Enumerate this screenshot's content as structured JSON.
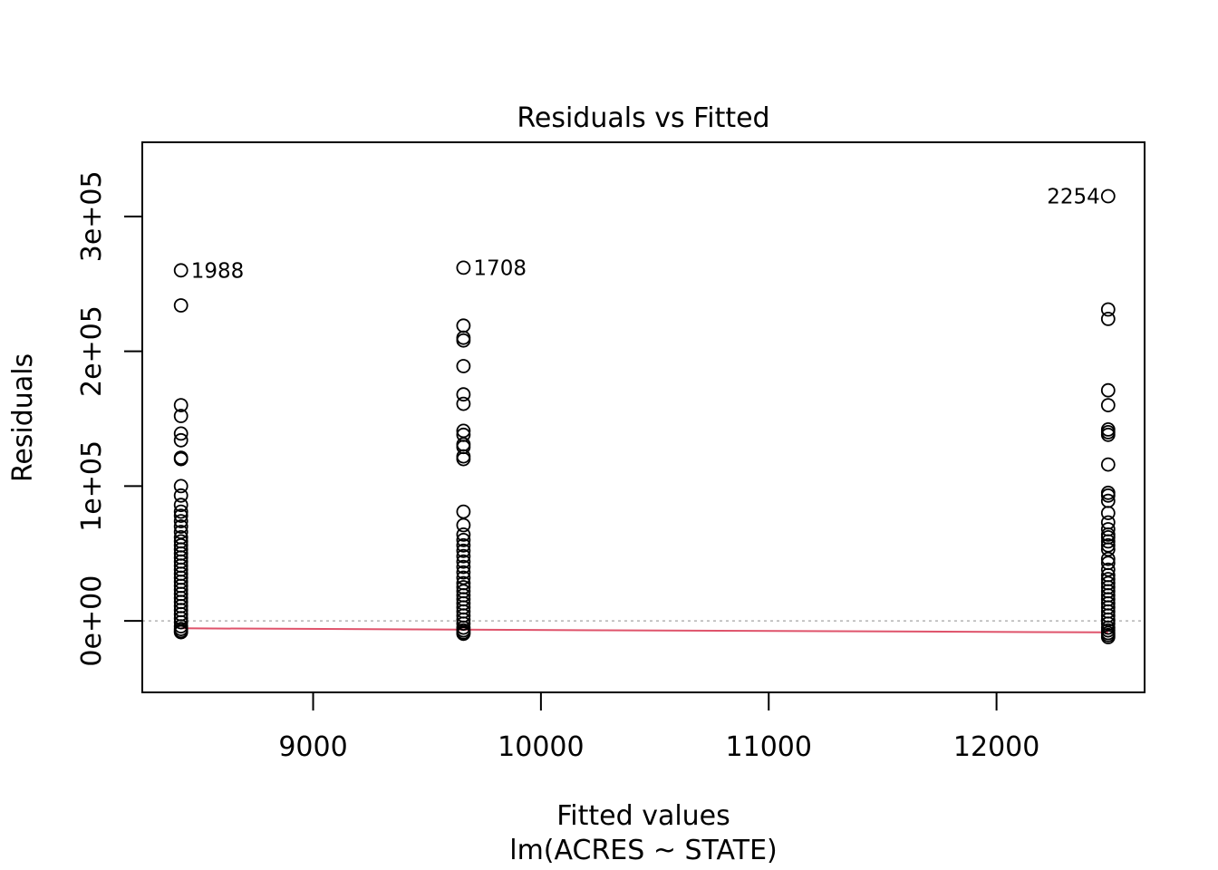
{
  "chart_data": {
    "type": "scatter",
    "title": "Residuals vs Fitted",
    "xlabel": "Fitted values",
    "xlabel_sub": "lm(ACRES ~ STATE)",
    "ylabel": "Residuals",
    "xlim": [
      8250,
      12650
    ],
    "ylim": [
      -53000,
      355000
    ],
    "x_ticks": [
      9000,
      10000,
      11000,
      12000
    ],
    "x_tick_labels": [
      "9000",
      "10000",
      "11000",
      "12000"
    ],
    "y_ticks": [
      0,
      100000,
      200000,
      300000
    ],
    "y_tick_labels": [
      "0e+00",
      "1e+05",
      "2e+05",
      "3e+05"
    ],
    "grid": false,
    "reference_line": {
      "y": 0,
      "style": "dotted",
      "color": "#b3b3b3"
    },
    "colors": {
      "points": "#000000",
      "smoother": "#df536b"
    },
    "groups": [
      {
        "x": 8420,
        "residuals": [
          260000,
          234000,
          160000,
          152000,
          139000,
          134000,
          121000,
          120000,
          100000,
          93000,
          86000,
          81000,
          78000,
          74000,
          70000,
          66000,
          62000,
          59000,
          56000,
          53000,
          50000,
          47000,
          44000,
          41000,
          38000,
          35000,
          32000,
          29000,
          26000,
          23000,
          20000,
          17000,
          14000,
          11000,
          8000,
          5000,
          2000,
          -1000,
          -4000,
          -6000,
          -7500,
          -8400
        ]
      },
      {
        "x": 9660,
        "residuals": [
          262000,
          219000,
          210000,
          208000,
          189000,
          168000,
          161000,
          141000,
          138000,
          131000,
          129000,
          122000,
          120000,
          81000,
          71000,
          64000,
          60000,
          56000,
          52000,
          48000,
          44000,
          40000,
          36000,
          32000,
          28000,
          25000,
          22000,
          19000,
          16000,
          13000,
          10000,
          7000,
          4000,
          1000,
          -2000,
          -5000,
          -7000,
          -8500,
          -9500
        ]
      },
      {
        "x": 12490,
        "residuals": [
          315000,
          231000,
          224000,
          171000,
          160000,
          142000,
          140000,
          138000,
          116000,
          95000,
          93000,
          89000,
          80000,
          73000,
          68000,
          64000,
          62000,
          59000,
          56000,
          53000,
          46000,
          43000,
          38000,
          34000,
          31000,
          28000,
          25000,
          22000,
          19000,
          16000,
          13000,
          10000,
          7000,
          4000,
          1000,
          -2000,
          -5000,
          -7000,
          -9000,
          -10500,
          -12000
        ]
      }
    ],
    "point_labels": [
      {
        "text": "1988",
        "x": 8420,
        "y": 260000,
        "side": "right"
      },
      {
        "text": "1708",
        "x": 9660,
        "y": 262000,
        "side": "right"
      },
      {
        "text": "2254",
        "x": 12490,
        "y": 315000,
        "side": "left"
      }
    ],
    "smoother": {
      "x": [
        8420,
        9660,
        12490
      ],
      "y": [
        -5500,
        -6500,
        -8500
      ]
    }
  }
}
